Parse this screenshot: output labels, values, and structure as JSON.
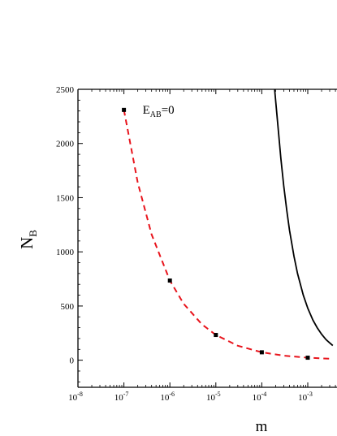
{
  "chart_data": {
    "type": "line",
    "xlabel": "m",
    "ylabel_main": "N",
    "ylabel_sub": "B",
    "x_scale": "log",
    "xlim": [
      1e-08,
      0.0035
    ],
    "ylim": [
      -250,
      2500
    ],
    "x_ticks": [
      {
        "value": 1e-08,
        "base": "10",
        "exp": "-8"
      },
      {
        "value": 1e-07,
        "base": "10",
        "exp": "-7"
      },
      {
        "value": 1e-06,
        "base": "10",
        "exp": "-6"
      },
      {
        "value": 1e-05,
        "base": "10",
        "exp": "-5"
      },
      {
        "value": 0.0001,
        "base": "10",
        "exp": "-4"
      },
      {
        "value": 0.001,
        "base": "10",
        "exp": "-3"
      }
    ],
    "y_ticks": [
      {
        "value": 0,
        "label": "0"
      },
      {
        "value": 500,
        "label": "500"
      },
      {
        "value": 1000,
        "label": "1000"
      },
      {
        "value": 1500,
        "label": "1500"
      },
      {
        "value": 2000,
        "label": "2000"
      },
      {
        "value": 2500,
        "label": "2500"
      }
    ],
    "annotation": {
      "main": "E",
      "sub": "AB",
      "rest": "=0",
      "x": 2e-07,
      "y": 2230
    },
    "series": [
      {
        "style": "dashed",
        "color": "#e8141c",
        "x": [
          1e-07,
          2e-07,
          4e-07,
          1e-06,
          2e-06,
          5e-06,
          1e-05,
          3e-05,
          0.0001,
          0.0003,
          0.001,
          0.0035
        ],
        "y": [
          2310,
          1640,
          1160,
          735,
          520,
          330,
          233,
          134,
          73,
          42,
          23,
          12
        ]
      },
      {
        "style": "solid",
        "color": "#000000",
        "x": [
          0.00019,
          0.00022,
          0.00026,
          0.0003,
          0.00035,
          0.0004,
          0.0005,
          0.0006,
          0.0008,
          0.001,
          0.0013,
          0.0016,
          0.002,
          0.0025,
          0.003,
          0.0035
        ],
        "y": [
          2500,
          2200,
          1860,
          1610,
          1380,
          1200,
          960,
          800,
          600,
          480,
          370,
          300,
          240,
          190,
          160,
          135
        ]
      },
      {
        "style": "markers",
        "color": "#000000",
        "x": [
          1e-07,
          1e-06,
          1e-05,
          0.0001,
          0.001
        ],
        "y": [
          2310,
          735,
          233,
          73,
          23
        ]
      }
    ]
  }
}
